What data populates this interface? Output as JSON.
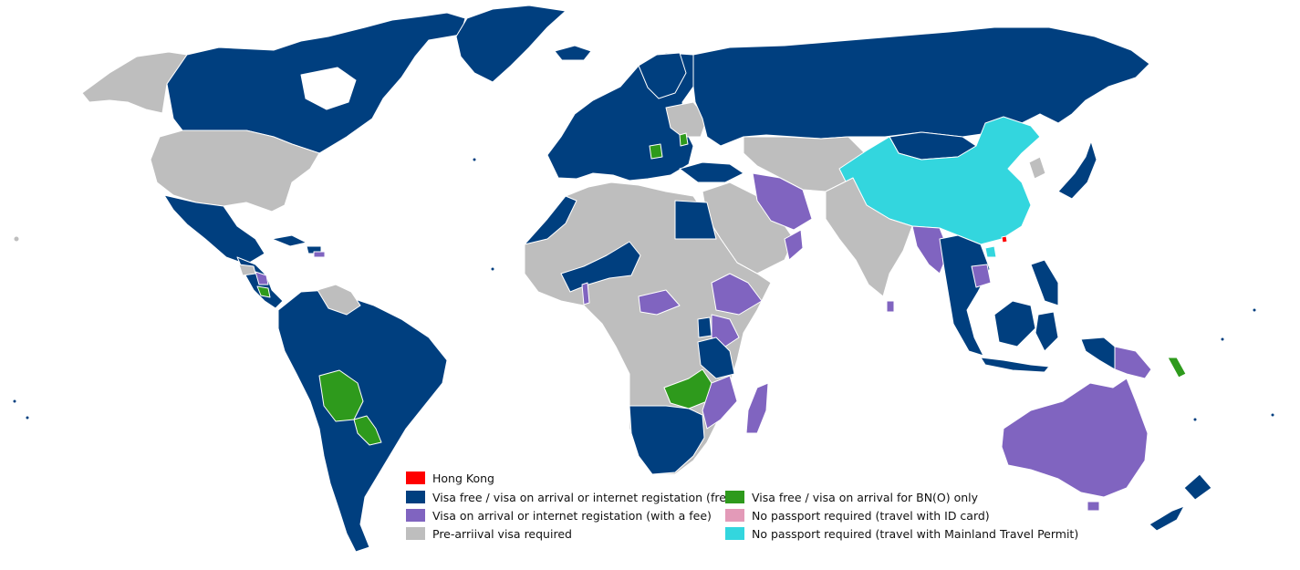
{
  "map": {
    "colors": {
      "hong_kong": "#ff0000",
      "visa_free": "#003f7f",
      "visa_fee": "#8064c0",
      "pre_arrival": "#bebebe",
      "bno_only": "#2e9a1c",
      "id_card": "#e39ab8",
      "mainland_permit": "#33d6de",
      "ocean": "#ffffff",
      "border": "#ffffff"
    }
  },
  "legend": {
    "items": [
      {
        "key": "hong_kong",
        "label": "Hong Kong"
      },
      {
        "key": "visa_free",
        "label": "Visa free / visa on arrival or internet registation (free)"
      },
      {
        "key": "visa_fee",
        "label": "Visa on arrival or internet registation (with a fee)"
      },
      {
        "key": "pre_arrival",
        "label": "Pre-arriival visa required"
      },
      {
        "key": "bno_only",
        "label": "Visa free / visa on arrival for BN(O) only"
      },
      {
        "key": "id_card",
        "label": "No passport required (travel with ID card)"
      },
      {
        "key": "mainland_permit",
        "label": "No passport required (travel with Mainland Travel Permit)"
      }
    ]
  }
}
